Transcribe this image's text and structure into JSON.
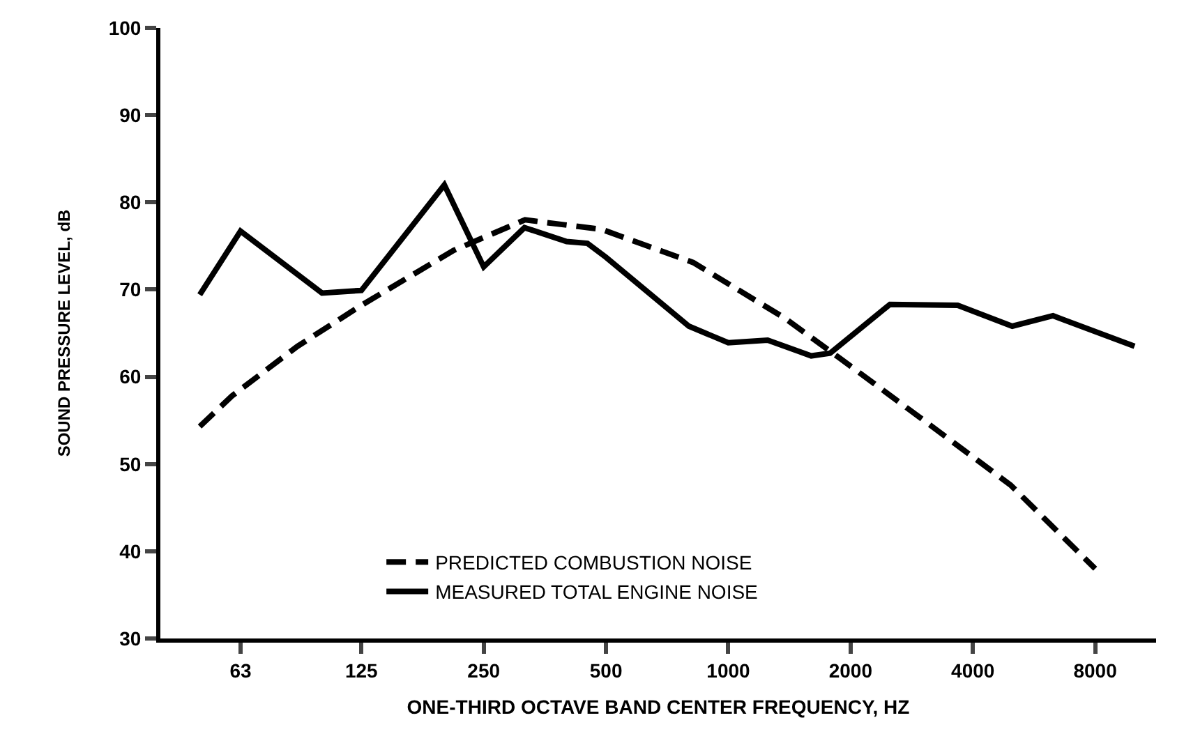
{
  "chart_data": {
    "type": "line",
    "xlabel": "ONE-THIRD OCTAVE BAND CENTER FREQUENCY, HZ",
    "ylabel": "SOUND PRESSURE LEVEL, dB",
    "log": "x",
    "xlim": [
      40,
      11300
    ],
    "xticks": [
      63,
      125,
      250,
      500,
      1000,
      2000,
      4000,
      8000
    ],
    "ylim": [
      30,
      100
    ],
    "yticks": [
      30,
      40,
      50,
      60,
      70,
      80,
      90,
      100
    ],
    "legend": "bottom",
    "series": [
      {
        "name": "PREDICTED COMBUSTION NOISE",
        "color": "#000000",
        "line_style": "dashed",
        "x": [
          50,
          60,
          87,
          125,
          211,
          316,
          354,
          488,
          820,
          1380,
          1860,
          3010,
          4950,
          8000
        ],
        "values": [
          54.3,
          57.8,
          63.5,
          68.2,
          74.5,
          78,
          77.7,
          76.9,
          73.1,
          66.7,
          62.3,
          55.1,
          47.6,
          38.0
        ]
      },
      {
        "name": "MEASURED TOTAL ENGINE NOISE",
        "color": "#000000",
        "line_style": "solid",
        "x": [
          50,
          63,
          100,
          125,
          200,
          250,
          315,
          400,
          450,
          500,
          800,
          1000,
          1250,
          1600,
          1780,
          2500,
          3670,
          5000,
          6300,
          10000
        ],
        "values": [
          69.4,
          76.7,
          69.6,
          69.9,
          82.0,
          72.6,
          77.1,
          75.5,
          75.3,
          73.7,
          65.8,
          63.9,
          64.2,
          62.4,
          62.7,
          68.3,
          68.2,
          65.8,
          67.0,
          63.5
        ]
      }
    ]
  }
}
